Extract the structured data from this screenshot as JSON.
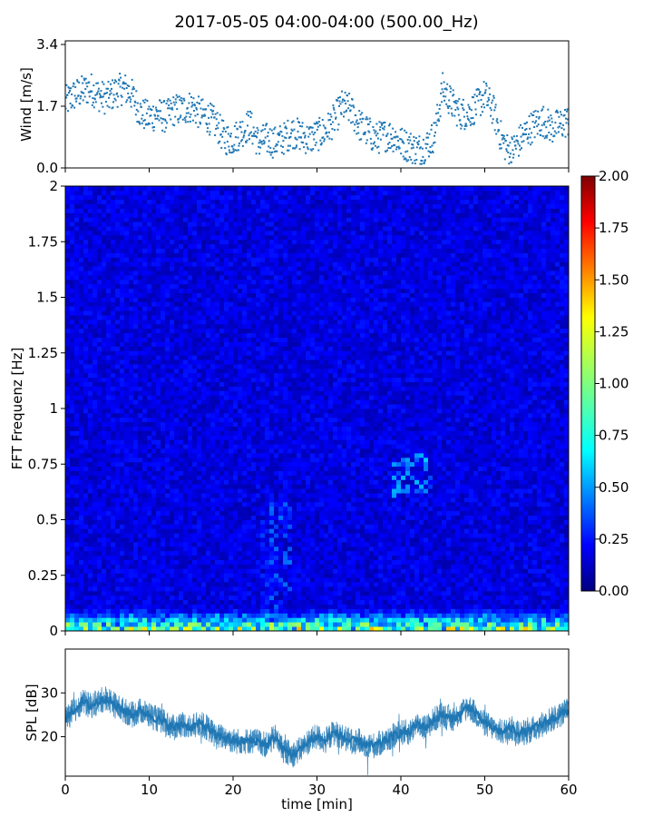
{
  "title": "2017-05-05 04:00-04:00 (500.00_Hz)",
  "chart_data": [
    {
      "type": "scatter",
      "ylabel": "Wind [m/s]",
      "xlim": [
        0,
        60
      ],
      "ylim": [
        0,
        3.5
      ],
      "yticks": [
        0.0,
        1.7,
        3.4
      ],
      "ytick_labels": [
        "0.0",
        "1.7",
        "3.4"
      ],
      "color": "#1f77b4",
      "series": [
        {
          "x": [
            0,
            1,
            2,
            3,
            4,
            5,
            6,
            7,
            8,
            9,
            10,
            11,
            12,
            13,
            14,
            15,
            16,
            17,
            18,
            19,
            20,
            21,
            22,
            23,
            24,
            25,
            26,
            27,
            28,
            29,
            30,
            31,
            32,
            33,
            34,
            35,
            36,
            37,
            38,
            39,
            40,
            41,
            42,
            43,
            44,
            45,
            46,
            47,
            48,
            49,
            50,
            51,
            52,
            53,
            54,
            55,
            56,
            57,
            58,
            59,
            60
          ],
          "y": [
            1.8,
            2.0,
            2.1,
            2.2,
            2.0,
            1.9,
            2.1,
            2.2,
            2.0,
            1.5,
            1.4,
            1.5,
            1.4,
            1.6,
            1.6,
            1.7,
            1.5,
            1.4,
            1.2,
            0.8,
            0.8,
            1.0,
            1.2,
            0.7,
            0.8,
            0.7,
            0.8,
            1.0,
            0.9,
            0.8,
            0.9,
            1.0,
            1.3,
            1.7,
            1.6,
            1.2,
            1.0,
            0.8,
            0.9,
            0.9,
            0.7,
            0.6,
            0.5,
            0.6,
            0.9,
            2.2,
            1.8,
            1.5,
            1.5,
            1.7,
            2.0,
            1.6,
            0.8,
            0.4,
            0.7,
            1.0,
            1.2,
            1.3,
            1.1,
            1.2,
            1.3
          ]
        }
      ]
    },
    {
      "type": "heatmap",
      "ylabel": "FFT Frequenz [Hz]",
      "xlim": [
        0,
        60
      ],
      "ylim": [
        0,
        2
      ],
      "yticks": [
        0,
        0.25,
        0.5,
        0.75,
        1,
        1.25,
        1.5,
        1.75,
        2
      ],
      "ytick_labels": [
        "0",
        "0.25",
        "0.5",
        "0.75",
        "1",
        "1.25",
        "1.5",
        "1.75",
        "2"
      ],
      "colormap": "jet",
      "colorbar": {
        "vmin": 0,
        "vmax": 2,
        "ticks": [
          0,
          0.25,
          0.5,
          0.75,
          1,
          1.25,
          1.5,
          1.75,
          2
        ],
        "tick_labels": [
          "0.00",
          "0.25",
          "0.50",
          "0.75",
          "1.00",
          "1.25",
          "1.50",
          "1.75",
          "2.00"
        ]
      },
      "background_level": 0.2,
      "low_frequency_band": {
        "f_max": 0.1,
        "level": 0.8
      },
      "highlights": [
        {
          "x_start": 23.5,
          "x_end": 27,
          "f_start": 0.1,
          "f_end": 0.6,
          "level": 0.4
        },
        {
          "x_start": 39,
          "x_end": 44,
          "f_start": 0.6,
          "f_end": 0.8,
          "level": 0.55
        }
      ]
    },
    {
      "type": "line",
      "ylabel": "SPL [dB]",
      "xlabel": "time [min]",
      "xlim": [
        0,
        60
      ],
      "ylim": [
        11,
        40
      ],
      "yticks": [
        20,
        30
      ],
      "ytick_labels": [
        "20",
        "30"
      ],
      "xticks": [
        0,
        10,
        20,
        30,
        40,
        50,
        60
      ],
      "xtick_labels": [
        "0",
        "10",
        "20",
        "30",
        "40",
        "50",
        "60"
      ],
      "color": "#1f77b4",
      "series": [
        {
          "x": [
            0,
            1,
            2,
            3,
            4,
            5,
            6,
            7,
            8,
            9,
            10,
            11,
            12,
            13,
            14,
            15,
            16,
            17,
            18,
            19,
            20,
            21,
            22,
            23,
            24,
            25,
            26,
            27,
            28,
            29,
            30,
            31,
            32,
            33,
            34,
            35,
            36,
            37,
            38,
            39,
            40,
            41,
            42,
            43,
            44,
            45,
            46,
            47,
            48,
            49,
            50,
            51,
            52,
            53,
            54,
            55,
            56,
            57,
            58,
            59,
            60
          ],
          "y": [
            24,
            26,
            28,
            27,
            28,
            29,
            27,
            26,
            25,
            26,
            25,
            24,
            23,
            22,
            23,
            22,
            23,
            22,
            20,
            20,
            19,
            19,
            19,
            19,
            18,
            20,
            17,
            16,
            17,
            19,
            20,
            19,
            21,
            20,
            19,
            19,
            18,
            18,
            19,
            20,
            21,
            21,
            23,
            22,
            24,
            25,
            24,
            25,
            27,
            25,
            23,
            22,
            21,
            22,
            21,
            21,
            22,
            23,
            24,
            25,
            26
          ]
        }
      ]
    }
  ]
}
